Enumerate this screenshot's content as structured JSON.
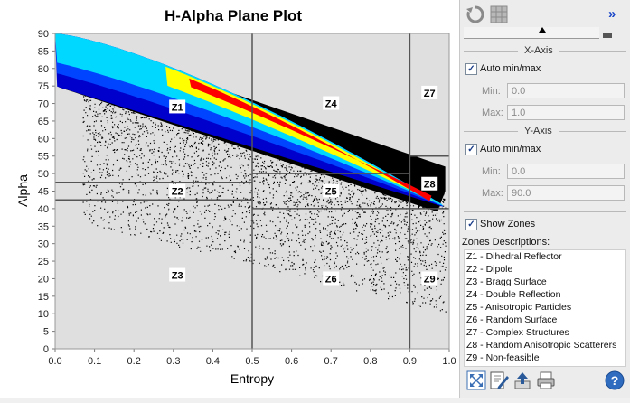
{
  "panel": {
    "toolbar": {
      "refresh_icon": "refresh-icon",
      "grid_icon": "grid-icon",
      "expand_label": "»"
    },
    "x_axis": {
      "header": "X-Axis",
      "auto_label": "Auto min/max",
      "auto_checked": true,
      "min_label": "Min:",
      "min_value": "0.0",
      "max_label": "Max:",
      "max_value": "1.0"
    },
    "y_axis": {
      "header": "Y-Axis",
      "auto_label": "Auto min/max",
      "auto_checked": true,
      "min_label": "Min:",
      "min_value": "0.0",
      "max_label": "Max:",
      "max_value": "90.0"
    },
    "show_zones_label": "Show Zones",
    "show_zones_checked": true,
    "zones_header": "Zones Descriptions:",
    "zones": [
      "Z1 - Dihedral Reflector",
      "Z2 - Dipole",
      "Z3 - Bragg Surface",
      "Z4 - Double Reflection",
      "Z5 - Anisotropic Particles",
      "Z6 - Random Surface",
      "Z7 - Complex Structures",
      "Z8 - Random Anisotropic Scatterers",
      "Z9 - Non-feasible"
    ],
    "bottom_icons": [
      "expand-icon",
      "edit-icon",
      "export-icon",
      "print-icon",
      "help-icon"
    ]
  },
  "chart_data": {
    "type": "heatmap",
    "title": "H-Alpha Plane Plot",
    "xlabel": "Entropy",
    "ylabel": "Alpha",
    "xlim": [
      0.0,
      1.0
    ],
    "ylim": [
      0,
      90
    ],
    "x_ticks": [
      "0.0",
      "0.1",
      "0.2",
      "0.3",
      "0.4",
      "0.5",
      "0.6",
      "0.7",
      "0.8",
      "0.9",
      "1.0"
    ],
    "y_ticks": [
      "0",
      "5",
      "10",
      "15",
      "20",
      "25",
      "30",
      "35",
      "40",
      "45",
      "50",
      "55",
      "60",
      "65",
      "70",
      "75",
      "80",
      "85",
      "90"
    ],
    "zone_boundaries": {
      "vertical_entropy": [
        0.5,
        0.9
      ],
      "horizontal_alpha_low_entropy": [
        42.5,
        47.5
      ],
      "horizontal_alpha_mid_entropy": [
        40,
        50
      ],
      "horizontal_alpha_high_entropy": [
        40,
        55
      ]
    },
    "zone_labels": [
      {
        "label": "Z1",
        "h": 0.31,
        "alpha": 69
      },
      {
        "label": "Z2",
        "h": 0.31,
        "alpha": 45
      },
      {
        "label": "Z3",
        "h": 0.31,
        "alpha": 21
      },
      {
        "label": "Z4",
        "h": 0.7,
        "alpha": 70
      },
      {
        "label": "Z5",
        "h": 0.7,
        "alpha": 45
      },
      {
        "label": "Z6",
        "h": 0.7,
        "alpha": 20
      },
      {
        "label": "Z7",
        "h": 0.95,
        "alpha": 73
      },
      {
        "label": "Z8",
        "h": 0.95,
        "alpha": 47
      },
      {
        "label": "Z9",
        "h": 0.95,
        "alpha": 20
      }
    ],
    "colors": {
      "background": "#dfdfdf",
      "red": "#ff0000",
      "yellow": "#ffff00",
      "cyan": "#00ffff",
      "blue": "#0000ff",
      "navy": "#000080",
      "zone_line": "#555555"
    }
  }
}
